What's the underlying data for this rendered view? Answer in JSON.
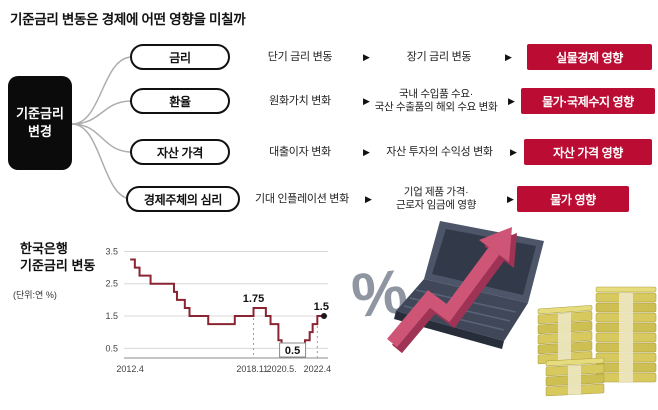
{
  "title": "기준금리 변동은 경제에 어떤 영향을 미칠까",
  "source_box": {
    "line1": "기준금리",
    "line2": "변경"
  },
  "colors": {
    "result_red": "#bb0d33",
    "chart_line": "#8a2433",
    "arrow_pink": "#ce5576",
    "money_yellow": "#d8c95f"
  },
  "flow": {
    "arrow": "▶",
    "rows": [
      {
        "label": "금리",
        "step1": "단기 금리 변동",
        "step2": "장기 금리 변동",
        "result": "실물경제 영향"
      },
      {
        "label": "환율",
        "step1": "원화가치 변화",
        "step2_l1": "국내 수입품 수요·",
        "step2_l2": "국산 수출품의 해외 수요 변화",
        "result": "물가·국제수지 영향"
      },
      {
        "label": "자산 가격",
        "step1": "대출이자 변화",
        "step2": "자산 투자의 수익성 변화",
        "result": "자산 가격 영향"
      },
      {
        "label": "경제주체의 심리",
        "step1": "기대 인플레이션 변화",
        "step2_l1": "기업 제품 가격·",
        "step2_l2": "근로자 임금에 영향",
        "result": "물가 영향"
      }
    ]
  },
  "chart": {
    "title_l1": "한국은행",
    "title_l2": "기준금리 변동",
    "unit": "(단위:연 %)"
  },
  "illustration": {
    "percent": "%"
  },
  "chart_data": {
    "type": "line",
    "subtype": "step",
    "title": "한국은행 기준금리 변동",
    "ylabel": "연 %",
    "line_color": "#8a2433",
    "xlim": [
      2012.0,
      2022.9
    ],
    "ylim": [
      0.2,
      3.7
    ],
    "grid": true,
    "y_ticks": [
      0.5,
      1.5,
      2.5,
      3.5
    ],
    "x_ticks": [
      {
        "x": 2012.33,
        "label": "2012.4"
      },
      {
        "x": 2018.92,
        "label": "2018.11."
      },
      {
        "x": 2020.42,
        "label": "2020.5."
      },
      {
        "x": 2022.33,
        "label": "2022.4"
      }
    ],
    "points": [
      [
        2012.33,
        3.25
      ],
      [
        2012.58,
        3.0
      ],
      [
        2012.83,
        2.75
      ],
      [
        2013.42,
        2.5
      ],
      [
        2014.67,
        2.25
      ],
      [
        2014.83,
        2.0
      ],
      [
        2015.25,
        1.75
      ],
      [
        2015.5,
        1.5
      ],
      [
        2016.5,
        1.25
      ],
      [
        2017.92,
        1.5
      ],
      [
        2018.92,
        1.75
      ],
      [
        2019.58,
        1.5
      ],
      [
        2019.83,
        1.25
      ],
      [
        2020.25,
        0.75
      ],
      [
        2020.42,
        0.5
      ],
      [
        2021.67,
        0.75
      ],
      [
        2021.92,
        1.0
      ],
      [
        2022.08,
        1.25
      ],
      [
        2022.33,
        1.5
      ]
    ],
    "annotations": [
      {
        "x": 2018.92,
        "y": 1.75,
        "label": "1.75",
        "boxed": false,
        "dash": true,
        "dot": false
      },
      {
        "x": 2020.42,
        "y": 0.5,
        "label": "0.5",
        "boxed": true,
        "dash": false,
        "dot": false
      },
      {
        "x": 2022.33,
        "y": 1.5,
        "label": "1.5",
        "boxed": false,
        "dash": true,
        "dot": true
      }
    ]
  }
}
